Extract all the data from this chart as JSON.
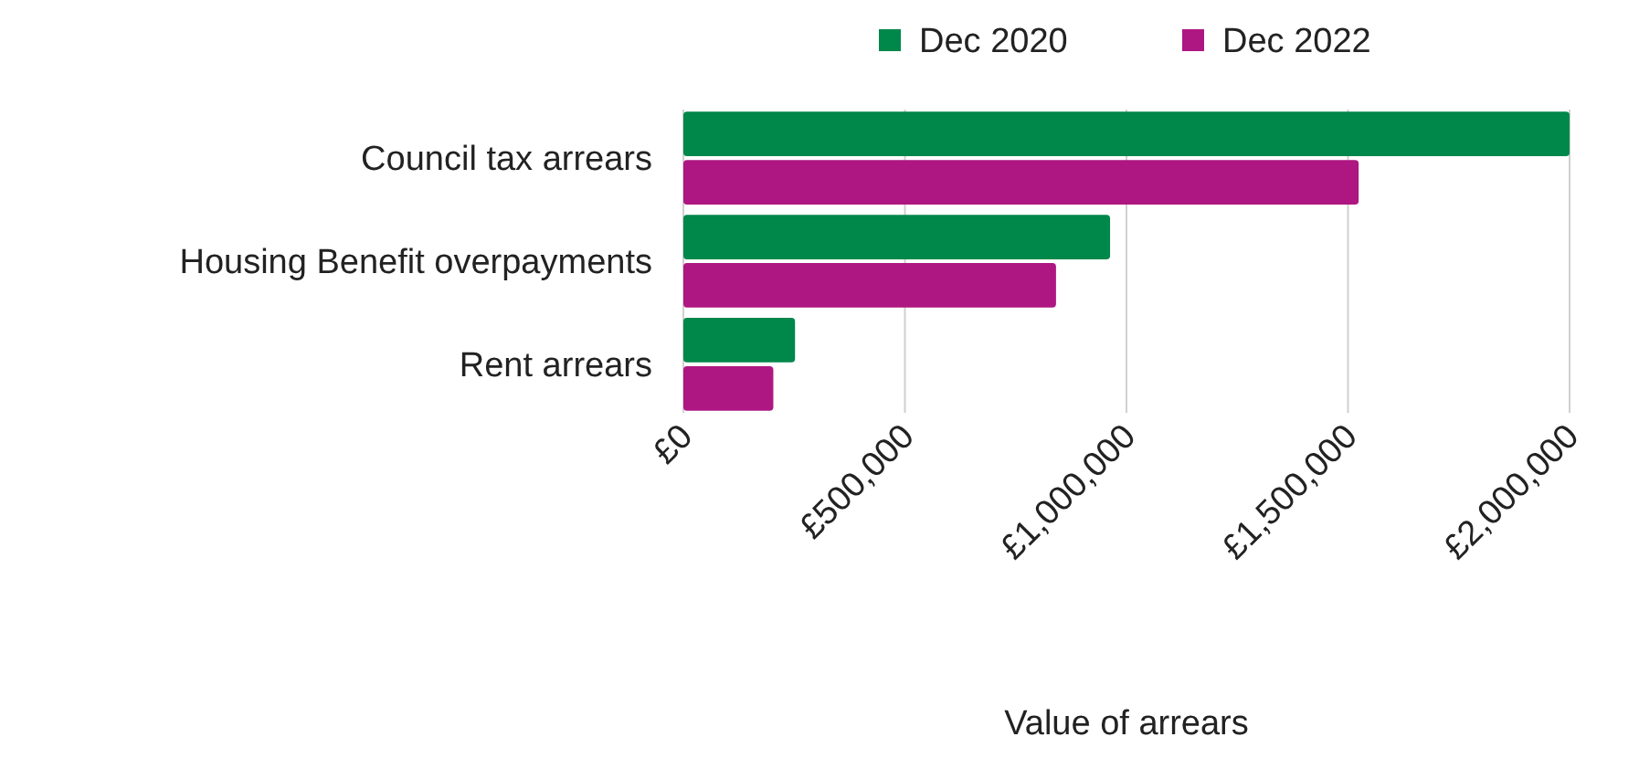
{
  "chart_data": {
    "type": "bar",
    "orientation": "horizontal",
    "xlabel": "Value of arrears",
    "categories": [
      "Council tax arrears",
      "Housing Benefit overpayments",
      "Rent arrears"
    ],
    "series": [
      {
        "name": "Dec 2020",
        "color": "#00874a",
        "values": [
          2000000,
          963000,
          252000
        ]
      },
      {
        "name": "Dec 2022",
        "color": "#ae1781",
        "values": [
          1524000,
          841000,
          203000
        ]
      }
    ],
    "xlim": [
      0,
      2000000
    ],
    "xticks": [
      {
        "value": 0,
        "label": "£0"
      },
      {
        "value": 500000,
        "label": "£500,000"
      },
      {
        "value": 1000000,
        "label": "£1,000,000"
      },
      {
        "value": 1500000,
        "label": "£1,500,000"
      },
      {
        "value": 2000000,
        "label": "£2,000,000"
      }
    ],
    "grid": "x",
    "legend": "top"
  }
}
